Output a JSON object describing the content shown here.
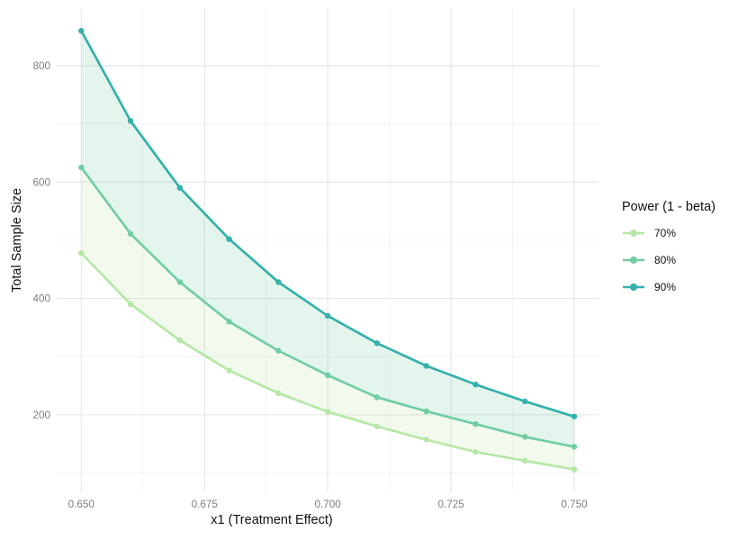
{
  "chart_data": {
    "type": "line",
    "title": "",
    "xlabel": "x1 (Treatment Effect)",
    "ylabel": "Total Sample Size",
    "x": [
      0.65,
      0.66,
      0.67,
      0.68,
      0.69,
      0.7,
      0.71,
      0.72,
      0.73,
      0.74,
      0.75
    ],
    "series": [
      {
        "name": "70%",
        "color": "#b7e7a7",
        "values": [
          478,
          390,
          328,
          276,
          237,
          205,
          180,
          157,
          136,
          121,
          106
        ]
      },
      {
        "name": "80%",
        "color": "#72cda4",
        "values": [
          625,
          511,
          428,
          360,
          310,
          268,
          230,
          206,
          184,
          162,
          145
        ]
      },
      {
        "name": "90%",
        "color": "#34b1ac",
        "values": [
          860,
          705,
          590,
          502,
          428,
          370,
          323,
          284,
          252,
          223,
          197
        ]
      }
    ],
    "legend": {
      "title": "Power (1 - beta)",
      "position": "right"
    },
    "x_ticks": [
      {
        "value": 0.65,
        "label": "0.650"
      },
      {
        "value": 0.675,
        "label": "0.675"
      },
      {
        "value": 0.7,
        "label": "0.700"
      },
      {
        "value": 0.725,
        "label": "0.725"
      },
      {
        "value": 0.75,
        "label": "0.750"
      }
    ],
    "y_ticks": [
      {
        "value": 200,
        "label": "200"
      },
      {
        "value": 400,
        "label": "400"
      },
      {
        "value": 600,
        "label": "600"
      },
      {
        "value": 800,
        "label": "800"
      }
    ],
    "x_minor_ticks": [
      0.6625,
      0.6875,
      0.7125,
      0.7375
    ],
    "y_minor_ticks": [
      100,
      300,
      500,
      700
    ],
    "xlim": [
      0.645,
      0.755
    ],
    "ylim": [
      67,
      899
    ],
    "grid": true,
    "band_alpha": 0.2,
    "marker_radius": 3.2,
    "line_width": 2.7,
    "colors": {
      "background": "#ffffff",
      "grid_major": "#e7e7e7",
      "grid_minor": "#f1f1f1",
      "tick_label": "#7e7e7e",
      "axis_title": "#111111"
    }
  }
}
